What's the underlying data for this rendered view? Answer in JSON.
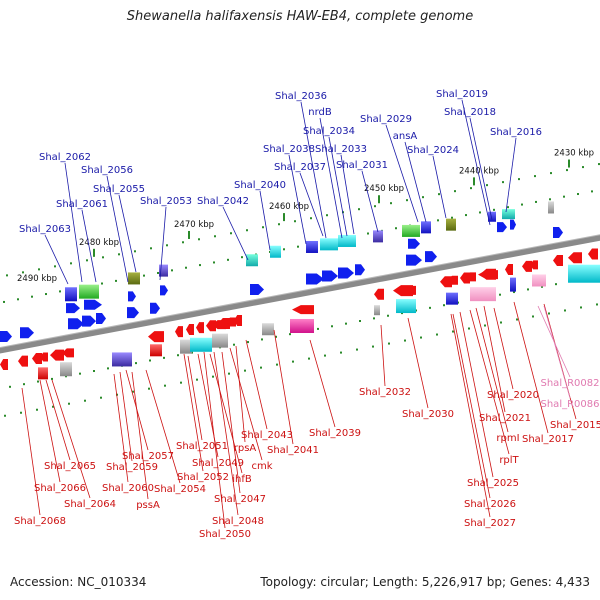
{
  "title": "Shewanella halifaxensis HAW-EB4, complete genome",
  "footer": {
    "accession": "Accession: NC_010334",
    "topology": "Topology: circular; Length: 5,226,917 bp; Genes: 4,433"
  },
  "colors": {
    "top_label": "#1a1aa8",
    "bottom_label": "#cc1111",
    "rna_label": "#e07ab0",
    "forward_arrow": "#1020ee",
    "reverse_arrow": "#ee1010",
    "backbone": "#8a8a8a",
    "tick": "#2a8a2a"
  },
  "scale_labels": [
    "2430 kbp",
    "2440 kbp",
    "2450 kbp",
    "2460 kbp",
    "2470 kbp",
    "2480 kbp",
    "2490 kbp"
  ],
  "top_labels": [
    "Shal_2019",
    "Shal_2018",
    "Shal_2016",
    "Shal_2029",
    "ansA",
    "Shal_2024",
    "Shal_2036",
    "nrdB",
    "Shal_2034",
    "Shal_2038",
    "Shal_2033",
    "Shal_2037",
    "Shal_2031",
    "Shal_2040",
    "Shal_2042",
    "Shal_2053",
    "Shal_2062",
    "Shal_2056",
    "Shal_2055",
    "Shal_2061",
    "Shal_2063"
  ],
  "bottom_labels": [
    "Shal_2032",
    "Shal_2030",
    "Shal_2020",
    "Shal_2021",
    "rpmI",
    "rplT",
    "Shal_2025",
    "Shal_2026",
    "Shal_2027",
    "Shal_2017",
    "Shal_2015",
    "Shal_2039",
    "Shal_2041",
    "Shal_2043",
    "rpsA",
    "cmk",
    "Shal_2051",
    "Shal_2049",
    "ihfB",
    "Shal_2052",
    "Shal_2047",
    "Shal_2048",
    "Shal_2050",
    "Shal_2054",
    "pssA",
    "Shal_2057",
    "Shal_2059",
    "Shal_2060",
    "Shal_2065",
    "Shal_2066",
    "Shal_2064",
    "Shal_2068"
  ],
  "rna_labels": [
    "Shal_R0082",
    "Shal_R0086"
  ]
}
